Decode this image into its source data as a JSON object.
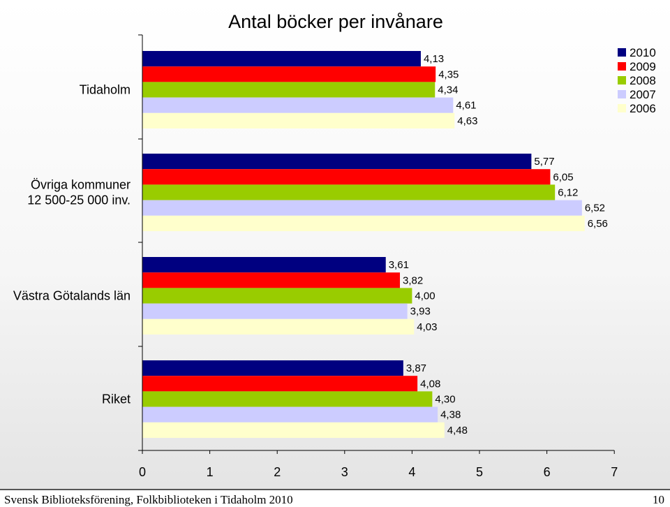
{
  "chart_data": {
    "type": "bar",
    "orientation": "horizontal",
    "title": "Antal böcker per invånare",
    "categories": [
      [
        "Tidaholm"
      ],
      [
        "Övriga kommuner",
        "12 500-25 000 inv."
      ],
      [
        "Västra Götalands län"
      ],
      [
        "Riket"
      ]
    ],
    "series": [
      {
        "name": "2010",
        "color": "#000080",
        "values": [
          4.13,
          5.77,
          3.61,
          3.87
        ],
        "labels": [
          "4,13",
          "5,77",
          "3,61",
          "3,87"
        ]
      },
      {
        "name": "2009",
        "color": "#ff0000",
        "values": [
          4.35,
          6.05,
          3.82,
          4.08
        ],
        "labels": [
          "4,35",
          "6,05",
          "3,82",
          "4,08"
        ]
      },
      {
        "name": "2008",
        "color": "#99cc00",
        "values": [
          4.34,
          6.12,
          4.0,
          4.3
        ],
        "labels": [
          "4,34",
          "6,12",
          "4,00",
          "4,30"
        ]
      },
      {
        "name": "2007",
        "color": "#ccccff",
        "values": [
          4.61,
          6.52,
          3.93,
          4.38
        ],
        "labels": [
          "4,61",
          "6,52",
          "3,93",
          "4,38"
        ]
      },
      {
        "name": "2006",
        "color": "#ffffcc",
        "values": [
          4.63,
          6.56,
          4.03,
          4.48
        ],
        "labels": [
          "4,63",
          "6,56",
          "4,03",
          "4,48"
        ]
      }
    ],
    "xlim": [
      0,
      7
    ],
    "xticks": [
      "0",
      "1",
      "2",
      "3",
      "4",
      "5",
      "6",
      "7"
    ],
    "grid": false,
    "legend": "top-right"
  },
  "footer": {
    "text": "Svensk Biblioteksförening, Folkbiblioteken i Tidaholm 2010",
    "page": "10"
  }
}
